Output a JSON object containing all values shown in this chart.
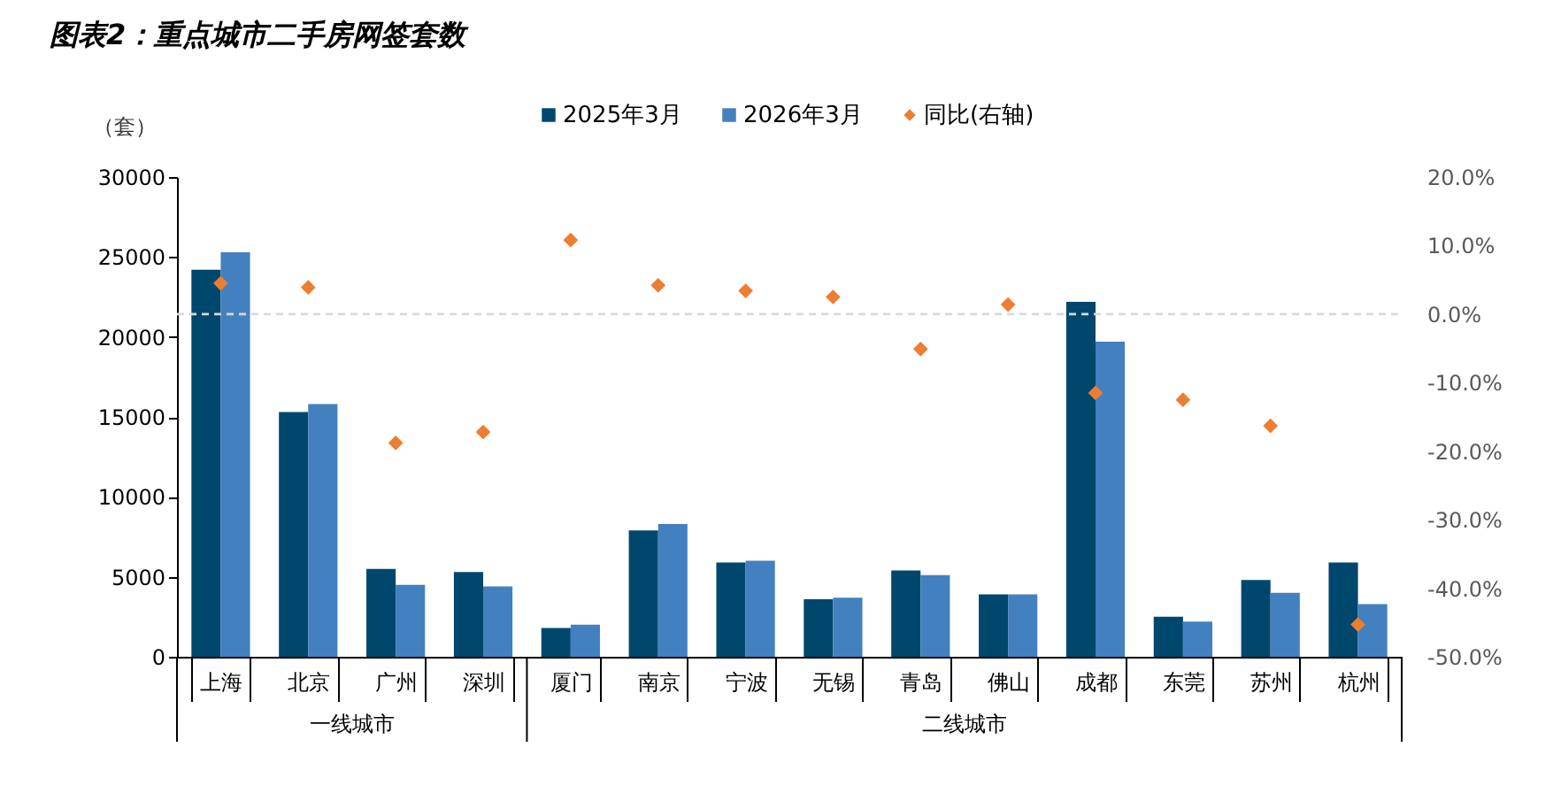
{
  "chart_data": {
    "type": "bar",
    "title": "图表2：重点城市二手房网签套数",
    "ylabel": "（套）",
    "categories": [
      "上海",
      "北京",
      "广州",
      "深圳",
      "厦门",
      "南京",
      "宁波",
      "无锡",
      "青岛",
      "佛山",
      "成都",
      "东莞",
      "苏州",
      "杭州"
    ],
    "series": [
      {
        "name": "2025年3月",
        "color": "#00476e",
        "values": [
          24200,
          15300,
          5500,
          5300,
          1800,
          7900,
          5900,
          3600,
          5400,
          3900,
          22200,
          2500,
          4800,
          5900
        ]
      },
      {
        "name": "2026年3月",
        "color": "#4380bf",
        "values": [
          25300,
          15800,
          4500,
          4400,
          2000,
          8300,
          6000,
          3700,
          5100,
          3900,
          19700,
          2200,
          4000,
          3300
        ]
      },
      {
        "name": "同比(右轴)",
        "type": "scatter",
        "axis": "y2",
        "marker": "diamond",
        "color": "#ed7d31",
        "values": [
          4.5,
          3.9,
          -18.8,
          -17.2,
          10.8,
          4.2,
          3.4,
          2.5,
          -5.1,
          1.4,
          -11.5,
          -12.5,
          -16.3,
          -45.3
        ]
      }
    ],
    "ylim": [
      0,
      30000
    ],
    "yticks": [
      0,
      5000,
      10000,
      15000,
      20000,
      25000,
      30000
    ],
    "y2lim": [
      -50,
      20
    ],
    "y2ticks": [
      {
        "value": -50,
        "label": "-50.0%"
      },
      {
        "value": -40,
        "label": "-40.0%"
      },
      {
        "value": -30,
        "label": "-30.0%"
      },
      {
        "value": -20,
        "label": "-20.0%"
      },
      {
        "value": -10,
        "label": "-10.0%"
      },
      {
        "value": 0,
        "label": "0.0%"
      },
      {
        "value": 10,
        "label": "10.0%"
      },
      {
        "value": 20,
        "label": "20.0%"
      }
    ],
    "ref_lines": [
      {
        "axis": "y2",
        "value": 0,
        "color": "#d9d9d9",
        "line_style": "dashed"
      }
    ],
    "annotations": [
      "一线城市",
      "二线城市"
    ],
    "legend": "top",
    "grid": false
  }
}
